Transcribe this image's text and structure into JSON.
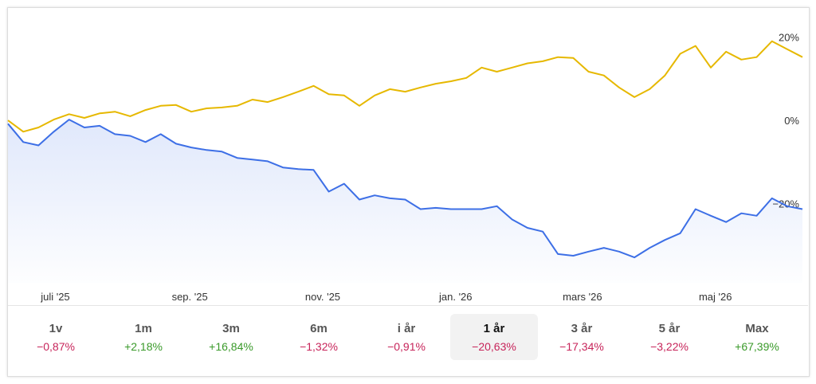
{
  "chart_data": {
    "type": "line",
    "x": [
      0,
      1,
      2,
      3,
      4,
      5,
      6,
      7,
      8,
      9,
      10,
      11,
      12,
      13,
      14,
      15,
      16,
      17,
      18,
      19,
      20,
      21,
      22,
      23,
      24,
      25,
      26,
      27,
      28,
      29,
      30,
      31,
      32,
      33,
      34,
      35,
      36,
      37,
      38,
      39,
      40,
      41,
      42,
      43,
      44,
      45,
      46,
      47,
      48,
      49,
      50,
      51,
      52
    ],
    "xlim": [
      0,
      52
    ],
    "xticks": [
      {
        "value": 3.1,
        "label": "juli '25"
      },
      {
        "value": 11.9,
        "label": "sep. '25"
      },
      {
        "value": 20.6,
        "label": "nov. '25"
      },
      {
        "value": 29.3,
        "label": "jan. '26"
      },
      {
        "value": 37.6,
        "label": "mars '26"
      },
      {
        "value": 46.3,
        "label": "maj '26"
      }
    ],
    "ylim": [
      -39,
      27
    ],
    "yticks": [
      {
        "value": 20,
        "label": "20%"
      },
      {
        "value": 0,
        "label": "0%"
      },
      {
        "value": -20,
        "label": "−20%"
      }
    ],
    "grid": false,
    "series": [
      {
        "color": "#e6b800",
        "values": [
          0,
          -2.7,
          -1.7,
          0.2,
          1.5,
          0.6,
          1.7,
          2.1,
          1,
          2.5,
          3.5,
          3.7,
          2.1,
          2.9,
          3.1,
          3.5,
          5,
          4.4,
          5.6,
          6.9,
          8.3,
          6.3,
          6,
          3.5,
          6,
          7.5,
          6.9,
          7.9,
          8.8,
          9.4,
          10.2,
          12.7,
          11.7,
          12.7,
          13.7,
          14.2,
          15.2,
          15,
          11.7,
          10.8,
          7.9,
          5.6,
          7.5,
          10.8,
          16,
          17.9,
          12.7,
          16.5,
          14.6,
          15.2,
          19,
          17.1,
          15.2
        ]
      },
      {
        "color": "#3d6fe6",
        "area": true,
        "values": [
          -0.8,
          -5.2,
          -6,
          -2.7,
          0.2,
          -1.7,
          -1.3,
          -3.3,
          -3.7,
          -5.2,
          -3.3,
          -5.6,
          -6.5,
          -7.1,
          -7.5,
          -9,
          -9.4,
          -9.8,
          -11.3,
          -11.7,
          -11.9,
          -17.1,
          -15.2,
          -19,
          -18,
          -18.7,
          -19,
          -21.3,
          -21,
          -21.3,
          -21.3,
          -21.3,
          -20.6,
          -23.8,
          -25.8,
          -26.7,
          -32.1,
          -32.5,
          -31.5,
          -30.6,
          -31.5,
          -32.9,
          -30.6,
          -28.7,
          -27.1,
          -21.3,
          -22.9,
          -24.4,
          -22.3,
          -22.9,
          -18.7,
          -20.6,
          -21.3
        ]
      }
    ]
  },
  "tabs": [
    {
      "label": "1v",
      "change": "−0,87%",
      "color": "#c7245a"
    },
    {
      "label": "1m",
      "change": "+2,18%",
      "color": "#3a9a2a"
    },
    {
      "label": "3m",
      "change": "+16,84%",
      "color": "#3a9a2a"
    },
    {
      "label": "6m",
      "change": "−1,32%",
      "color": "#c7245a"
    },
    {
      "label": "i år",
      "change": "−0,91%",
      "color": "#c7245a"
    },
    {
      "label": "1 år",
      "change": "−20,63%",
      "color": "#c7245a",
      "selected": true
    },
    {
      "label": "3 år",
      "change": "−17,34%",
      "color": "#c7245a"
    },
    {
      "label": "5 år",
      "change": "−3,22%",
      "color": "#c7245a"
    },
    {
      "label": "Max",
      "change": "+67,39%",
      "color": "#3a9a2a"
    }
  ]
}
